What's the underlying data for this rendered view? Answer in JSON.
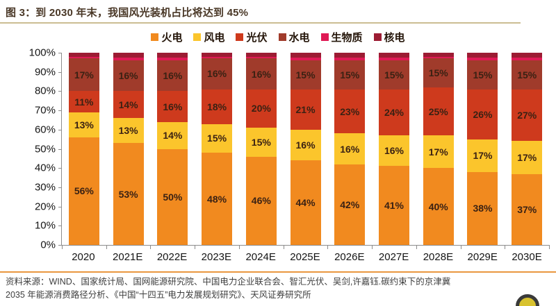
{
  "title": "图 3：到 2030 年末，我国风光装机占比将达到 45%",
  "footer": {
    "line1": "资料来源：WIND、国家统计局、国网能源研究院、中国电力企业联合会、智汇光伏、吴剑,许嘉钰.碳约束下的京津冀",
    "line2": "2035 年能源消费路径分析、《中国“十四五”电力发展规划研究》、天风证券研究所"
  },
  "colors": {
    "thermal": "#F18A1F",
    "wind": "#FBC52C",
    "solar": "#CE3A1D",
    "hydro": "#A03B2B",
    "biomass": "#DF1A55",
    "nuclear": "#9C1C33",
    "title_text": "#4a3827",
    "title_underline": "#cbbd92",
    "footer_divider": "#e9973f",
    "axis": "#8c8c8c"
  },
  "chart_data": {
    "type": "bar",
    "subtype": "stacked-100pct",
    "title": "到 2030 年末，我国风光装机占比将达到 45%",
    "categories": [
      "2020",
      "2021E",
      "2022E",
      "2023E",
      "2024E",
      "2025E",
      "2026E",
      "2027E",
      "2028E",
      "2029E",
      "2030E"
    ],
    "series": [
      {
        "name": "火电",
        "color": "#F18A1F",
        "labeled": true,
        "values": [
          56,
          53,
          50,
          48,
          46,
          44,
          42,
          41,
          40,
          38,
          37
        ]
      },
      {
        "name": "风电",
        "color": "#FBC52C",
        "labeled": true,
        "values": [
          13,
          13,
          14,
          15,
          15,
          16,
          16,
          16,
          17,
          17,
          17
        ]
      },
      {
        "name": "光伏",
        "color": "#CE3A1D",
        "labeled": true,
        "values": [
          11,
          14,
          16,
          18,
          20,
          21,
          23,
          24,
          25,
          26,
          27
        ]
      },
      {
        "name": "水电",
        "color": "#A03B2B",
        "labeled": true,
        "values": [
          17,
          16,
          16,
          16,
          16,
          15,
          15,
          15,
          15,
          15,
          15
        ]
      },
      {
        "name": "生物质",
        "color": "#DF1A55",
        "labeled": false,
        "estimated": true,
        "values": [
          1,
          1.5,
          1.5,
          1,
          1,
          1.5,
          1.5,
          1.5,
          1,
          1.5,
          1.5
        ]
      },
      {
        "name": "核电",
        "color": "#9C1C33",
        "labeled": false,
        "estimated": true,
        "values": [
          2,
          2.5,
          2.5,
          2,
          2,
          2.5,
          2.5,
          2.5,
          2,
          2.5,
          2.5
        ]
      }
    ],
    "y_ticks": [
      "100%",
      "90%",
      "80%",
      "70%",
      "60%",
      "50%",
      "40%",
      "30%",
      "20%",
      "10%",
      "0%"
    ],
    "ylim": [
      0,
      100
    ],
    "ylabel": "",
    "xlabel": "",
    "grid": false,
    "legend_position": "top-center",
    "label_format": "{value}%",
    "min_pct_for_label": 10
  }
}
